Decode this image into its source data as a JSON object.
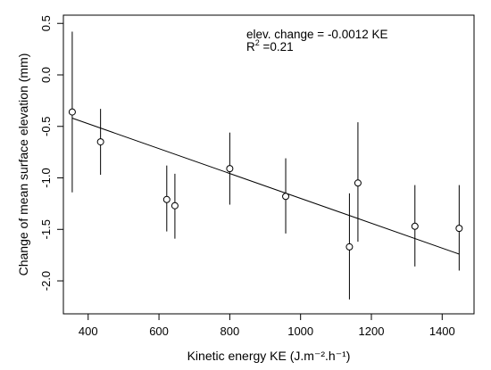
{
  "chart_data": {
    "type": "scatter",
    "xlabel": "Kinetic energy KE (J.m⁻².h⁻¹)",
    "ylabel": "Change of mean surface elevation (mm)",
    "xlim": [
      330,
      1490
    ],
    "ylim": [
      -2.32,
      0.58
    ],
    "x_ticks": [
      400,
      600,
      800,
      1000,
      1200,
      1400
    ],
    "y_ticks": [
      -2.0,
      -1.5,
      -1.0,
      -0.5,
      0.0,
      0.5
    ],
    "x_tick_labels": [
      "400",
      "600",
      "800",
      "1000",
      "1200",
      "1400"
    ],
    "y_tick_labels": [
      "-2.0",
      "-1.5",
      "-1.0",
      "-0.5",
      "0.0",
      "0.5"
    ],
    "points": [
      {
        "x": 355,
        "y": -0.36,
        "ylow": -1.14,
        "yhigh": 0.42
      },
      {
        "x": 435,
        "y": -0.65,
        "ylow": -0.97,
        "yhigh": -0.33
      },
      {
        "x": 622,
        "y": -1.21,
        "ylow": -1.52,
        "yhigh": -0.88
      },
      {
        "x": 645,
        "y": -1.27,
        "ylow": -1.59,
        "yhigh": -0.96
      },
      {
        "x": 800,
        "y": -0.91,
        "ylow": -1.26,
        "yhigh": -0.56
      },
      {
        "x": 958,
        "y": -1.18,
        "ylow": -1.54,
        "yhigh": -0.81
      },
      {
        "x": 1138,
        "y": -1.67,
        "ylow": -2.18,
        "yhigh": -1.15
      },
      {
        "x": 1162,
        "y": -1.05,
        "ylow": -1.62,
        "yhigh": -0.46
      },
      {
        "x": 1323,
        "y": -1.47,
        "ylow": -1.86,
        "yhigh": -1.07
      },
      {
        "x": 1448,
        "y": -1.49,
        "ylow": -1.9,
        "yhigh": -1.07
      }
    ],
    "fit_line": {
      "x": [
        355,
        1448
      ],
      "y": [
        -0.42,
        -1.74
      ]
    },
    "annotations": {
      "equation": "elev. change =  -0.0012 KE",
      "r2_prefix": "R",
      "r2_sup": "2",
      "r2_suffix": " =0.21"
    },
    "grid": false
  }
}
